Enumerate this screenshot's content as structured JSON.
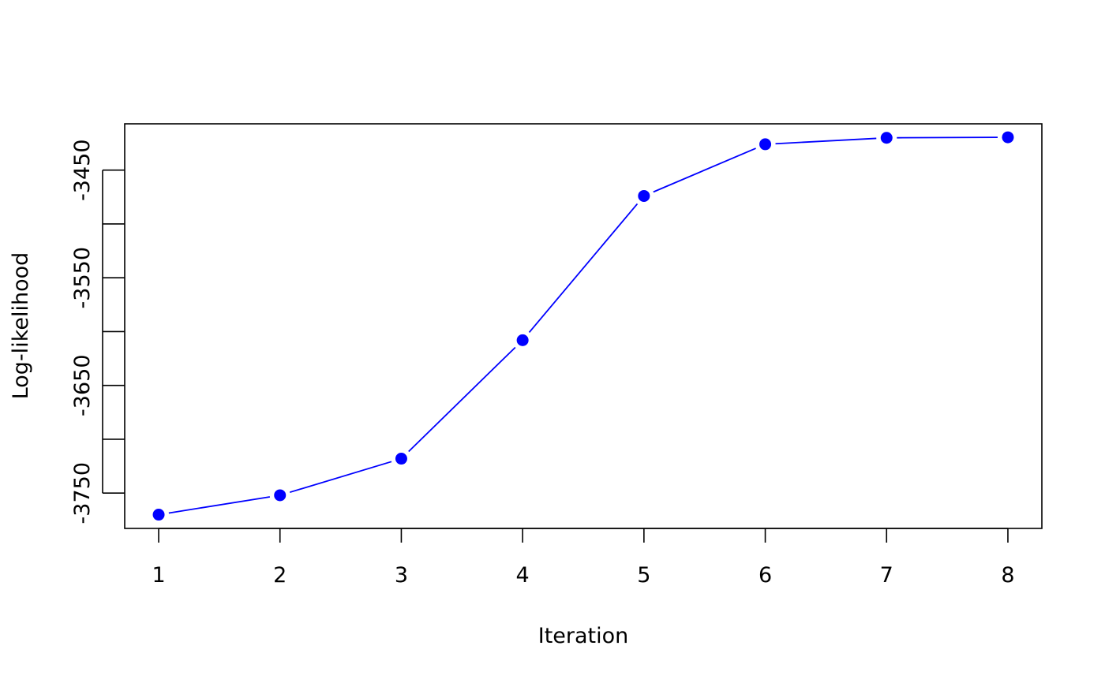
{
  "chart_data": {
    "type": "line",
    "title": "",
    "xlabel": "Iteration",
    "ylabel": "Log-likelihood",
    "x": [
      1,
      2,
      3,
      4,
      5,
      6,
      7,
      8
    ],
    "series": [
      {
        "values": [
          -3770,
          -3752,
          -3718,
          -3608,
          -3474,
          -3426,
          -3420,
          -3419.5
        ],
        "color": "#0000ff",
        "style": "points-and-lines (type='b')"
      }
    ],
    "xticks": [
      "1",
      "2",
      "3",
      "4",
      "5",
      "6",
      "7",
      "8"
    ],
    "yticks": [
      -3750,
      -3700,
      -3650,
      -3600,
      -3550,
      -3500,
      -3450
    ],
    "ytick_labels": [
      "-3750",
      "",
      "-3650",
      "",
      "-3550",
      "",
      "-3450"
    ],
    "xlim": [
      0.72,
      8.28
    ],
    "ylim": [
      -3782.8,
      -3407
    ],
    "grid": false,
    "legend": "none"
  }
}
